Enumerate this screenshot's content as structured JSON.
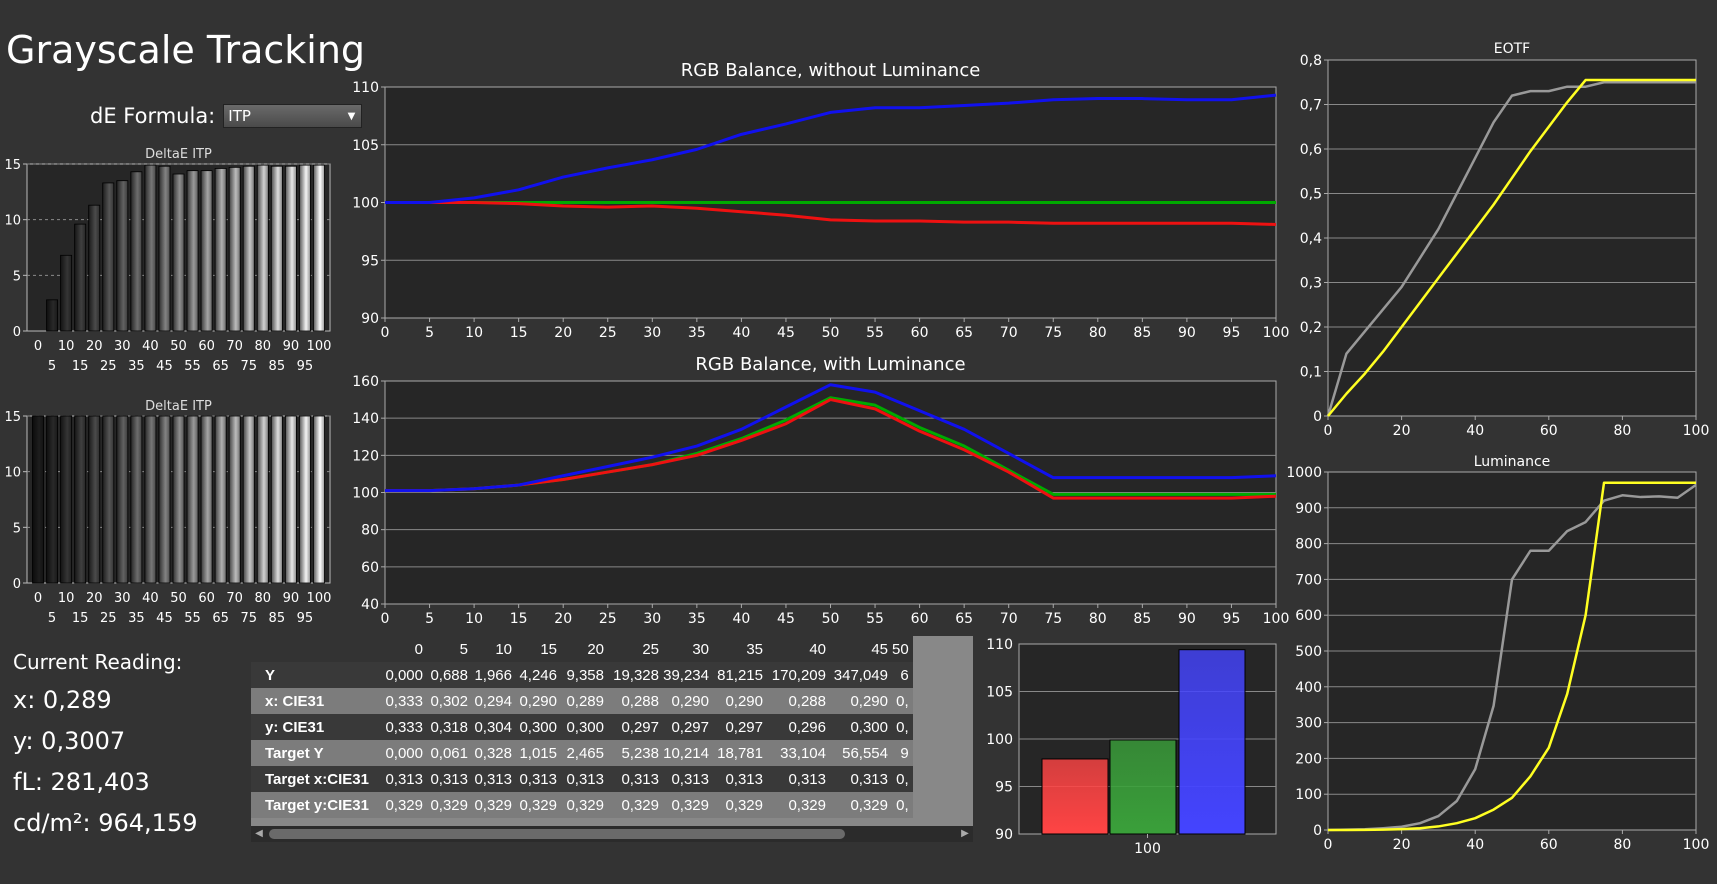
{
  "page_title": "Grayscale Tracking",
  "de_formula": {
    "label": "dE Formula:",
    "value": "ITP"
  },
  "current_reading": {
    "header": "Current Reading:",
    "lines": [
      "x: 0,289",
      "y: 0,3007",
      "fL: 281,403",
      "cd/m²: 964,159"
    ]
  },
  "table": {
    "columns": [
      "0",
      "5",
      "10",
      "15",
      "20",
      "25",
      "30",
      "35",
      "40",
      "45",
      "50"
    ],
    "rows": [
      {
        "label": "Y",
        "values": [
          "0,000",
          "0,688",
          "1,966",
          "4,246",
          "9,358",
          "19,328",
          "39,234",
          "81,215",
          "170,209",
          "347,049",
          "6"
        ]
      },
      {
        "label": "x: CIE31",
        "values": [
          "0,333",
          "0,302",
          "0,294",
          "0,290",
          "0,289",
          "0,288",
          "0,290",
          "0,290",
          "0,288",
          "0,290",
          "0,"
        ]
      },
      {
        "label": "y: CIE31",
        "values": [
          "0,333",
          "0,318",
          "0,304",
          "0,300",
          "0,300",
          "0,297",
          "0,297",
          "0,297",
          "0,296",
          "0,300",
          "0,"
        ]
      },
      {
        "label": "Target Y",
        "values": [
          "0,000",
          "0,061",
          "0,328",
          "1,015",
          "2,465",
          "5,238",
          "10,214",
          "18,781",
          "33,104",
          "56,554",
          "9"
        ]
      },
      {
        "label": "Target x:CIE31",
        "values": [
          "0,313",
          "0,313",
          "0,313",
          "0,313",
          "0,313",
          "0,313",
          "0,313",
          "0,313",
          "0,313",
          "0,313",
          "0,"
        ]
      },
      {
        "label": "Target y:CIE31",
        "values": [
          "0,329",
          "0,329",
          "0,329",
          "0,329",
          "0,329",
          "0,329",
          "0,329",
          "0,329",
          "0,329",
          "0,329",
          "0,"
        ]
      }
    ]
  },
  "chart_data": [
    {
      "id": "deltae1",
      "type": "bar",
      "title": "DeltaE ITP",
      "categories": [
        0,
        5,
        10,
        15,
        20,
        25,
        30,
        35,
        40,
        45,
        50,
        55,
        60,
        65,
        70,
        75,
        80,
        85,
        90,
        95,
        100
      ],
      "values": [
        0,
        2.8,
        6.8,
        9.6,
        11.3,
        13.3,
        13.5,
        14.3,
        14.9,
        14.8,
        14.1,
        14.4,
        14.4,
        14.6,
        14.7,
        14.8,
        14.9,
        14.8,
        14.8,
        14.9,
        14.9
      ],
      "ylim": [
        0,
        15
      ],
      "yticks": [
        0,
        5,
        10,
        15
      ],
      "xticks_top": [
        "0",
        "10",
        "20",
        "30",
        "40",
        "50",
        "60",
        "70",
        "80",
        "90",
        "100"
      ],
      "xticks_bottom": [
        "5",
        "15",
        "25",
        "35",
        "45",
        "55",
        "65",
        "75",
        "85",
        "95"
      ]
    },
    {
      "id": "deltae2",
      "type": "bar",
      "title": "DeltaE ITP",
      "categories": [
        0,
        5,
        10,
        15,
        20,
        25,
        30,
        35,
        40,
        45,
        50,
        55,
        60,
        65,
        70,
        75,
        80,
        85,
        90,
        95,
        100
      ],
      "values": [
        15,
        15,
        15,
        15,
        15,
        15,
        15,
        15,
        15,
        15,
        15,
        15,
        15,
        15,
        15,
        15,
        15,
        15,
        15,
        15,
        15
      ],
      "ylim": [
        0,
        15
      ],
      "yticks": [
        0,
        5,
        10,
        15
      ],
      "xticks_top": [
        "0",
        "10",
        "20",
        "30",
        "40",
        "50",
        "60",
        "70",
        "80",
        "90",
        "100"
      ],
      "xticks_bottom": [
        "5",
        "15",
        "25",
        "35",
        "45",
        "55",
        "65",
        "75",
        "85",
        "95"
      ]
    },
    {
      "id": "rgb1",
      "type": "line",
      "title": "RGB Balance, without Luminance",
      "x": [
        0,
        5,
        10,
        15,
        20,
        25,
        30,
        35,
        40,
        45,
        50,
        55,
        60,
        65,
        70,
        75,
        80,
        85,
        90,
        95,
        100
      ],
      "series": [
        {
          "color": "#00aa00",
          "values": [
            100,
            100,
            100,
            100,
            100,
            100,
            100,
            100,
            100,
            100,
            100,
            100,
            100,
            100,
            100,
            100,
            100,
            100,
            100,
            100,
            100
          ]
        },
        {
          "color": "#ee1111",
          "values": [
            100,
            100,
            100,
            99.9,
            99.7,
            99.6,
            99.7,
            99.5,
            99.2,
            98.9,
            98.5,
            98.4,
            98.4,
            98.3,
            98.3,
            98.2,
            98.2,
            98.2,
            98.2,
            98.2,
            98.1
          ]
        },
        {
          "color": "#1111ee",
          "values": [
            100,
            100,
            100.4,
            101.1,
            102.2,
            103,
            103.7,
            104.6,
            105.9,
            106.8,
            107.8,
            108.2,
            108.2,
            108.4,
            108.6,
            108.9,
            109,
            109,
            108.9,
            108.9,
            109.3
          ]
        }
      ],
      "ylim": [
        90,
        110
      ],
      "yticks": [
        90,
        95,
        100,
        105,
        110
      ],
      "xlim": [
        0,
        100
      ],
      "xticks": [
        0,
        5,
        10,
        15,
        20,
        25,
        30,
        35,
        40,
        45,
        50,
        55,
        60,
        65,
        70,
        75,
        80,
        85,
        90,
        95,
        100
      ]
    },
    {
      "id": "rgb2",
      "type": "line",
      "title": "RGB Balance, with Luminance",
      "x": [
        0,
        5,
        10,
        15,
        20,
        25,
        30,
        35,
        40,
        45,
        50,
        55,
        60,
        65,
        70,
        75,
        80,
        85,
        90,
        95,
        100
      ],
      "series": [
        {
          "color": "#00aa00",
          "values": [
            101,
            101,
            102,
            104,
            107,
            111,
            115,
            121,
            129,
            139,
            151,
            147,
            135,
            125,
            112,
            99,
            99,
            99,
            99,
            99,
            99
          ]
        },
        {
          "color": "#ee1111",
          "values": [
            101,
            101,
            102,
            104,
            107,
            111,
            115,
            120,
            128,
            137,
            150,
            145,
            133,
            123,
            111,
            97,
            97,
            97,
            97,
            97,
            98
          ]
        },
        {
          "color": "#1111ee",
          "values": [
            101,
            101,
            102,
            104,
            109,
            114,
            119,
            125,
            134,
            146,
            158,
            154,
            144,
            134,
            121,
            108,
            108,
            108,
            108,
            108,
            109
          ]
        }
      ],
      "ylim": [
        40,
        160
      ],
      "yticks": [
        40,
        60,
        80,
        100,
        120,
        140,
        160
      ],
      "xlim": [
        0,
        100
      ],
      "xticks": [
        0,
        5,
        10,
        15,
        20,
        25,
        30,
        35,
        40,
        45,
        50,
        55,
        60,
        65,
        70,
        75,
        80,
        85,
        90,
        95,
        100
      ]
    },
    {
      "id": "rgbbars",
      "type": "bar",
      "categories": [
        "100"
      ],
      "series": [
        {
          "color": "#ff4444",
          "value": 97.9
        },
        {
          "color": "#3aa03a",
          "value": 99.9
        },
        {
          "color": "#4444ff",
          "value": 109.4
        }
      ],
      "ylim": [
        90,
        110
      ],
      "yticks": [
        90,
        95,
        100,
        105,
        110
      ]
    },
    {
      "id": "eotf",
      "type": "line",
      "title": "EOTF",
      "x": [
        0,
        5,
        10,
        15,
        20,
        25,
        30,
        35,
        40,
        45,
        50,
        55,
        60,
        65,
        70,
        75,
        80,
        85,
        90,
        95,
        100
      ],
      "series": [
        {
          "color": "#999999",
          "values": [
            0,
            0.14,
            0.19,
            0.24,
            0.29,
            0.355,
            0.42,
            0.5,
            0.58,
            0.66,
            0.72,
            0.73,
            0.73,
            0.74,
            0.74,
            0.75,
            0.75,
            0.75,
            0.75,
            0.75,
            0.75
          ]
        },
        {
          "color": "#ffff22",
          "values": [
            0,
            0.05,
            0.095,
            0.145,
            0.2,
            0.255,
            0.31,
            0.365,
            0.42,
            0.475,
            0.535,
            0.595,
            0.65,
            0.705,
            0.755,
            0.755,
            0.755,
            0.755,
            0.755,
            0.755,
            0.755
          ]
        }
      ],
      "ylim": [
        0,
        0.8
      ],
      "yticks": [
        "0",
        "0,1",
        "0,2",
        "0,3",
        "0,4",
        "0,5",
        "0,6",
        "0,7",
        "0,8"
      ],
      "xlim": [
        0,
        100
      ],
      "xticks": [
        0,
        20,
        40,
        60,
        80,
        100
      ]
    },
    {
      "id": "lum",
      "type": "line",
      "title": "Luminance",
      "x": [
        0,
        5,
        10,
        15,
        20,
        25,
        30,
        35,
        40,
        45,
        50,
        55,
        60,
        65,
        70,
        75,
        80,
        85,
        90,
        95,
        100
      ],
      "series": [
        {
          "color": "#999999",
          "values": [
            0,
            1,
            2,
            5,
            9,
            19,
            39,
            81,
            170,
            347,
            700,
            780,
            780,
            835,
            860,
            920,
            935,
            930,
            932,
            928,
            964
          ]
        },
        {
          "color": "#ffff22",
          "values": [
            0,
            0.06,
            0.3,
            1,
            2.5,
            5,
            10,
            19,
            33,
            57,
            90,
            150,
            230,
            380,
            600,
            970,
            970,
            970,
            970,
            970,
            970
          ]
        }
      ],
      "ylim": [
        0,
        1000
      ],
      "yticks": [
        0,
        100,
        200,
        300,
        400,
        500,
        600,
        700,
        800,
        900,
        1000
      ],
      "xlim": [
        0,
        100
      ],
      "xticks": [
        0,
        20,
        40,
        60,
        80,
        100
      ]
    }
  ]
}
